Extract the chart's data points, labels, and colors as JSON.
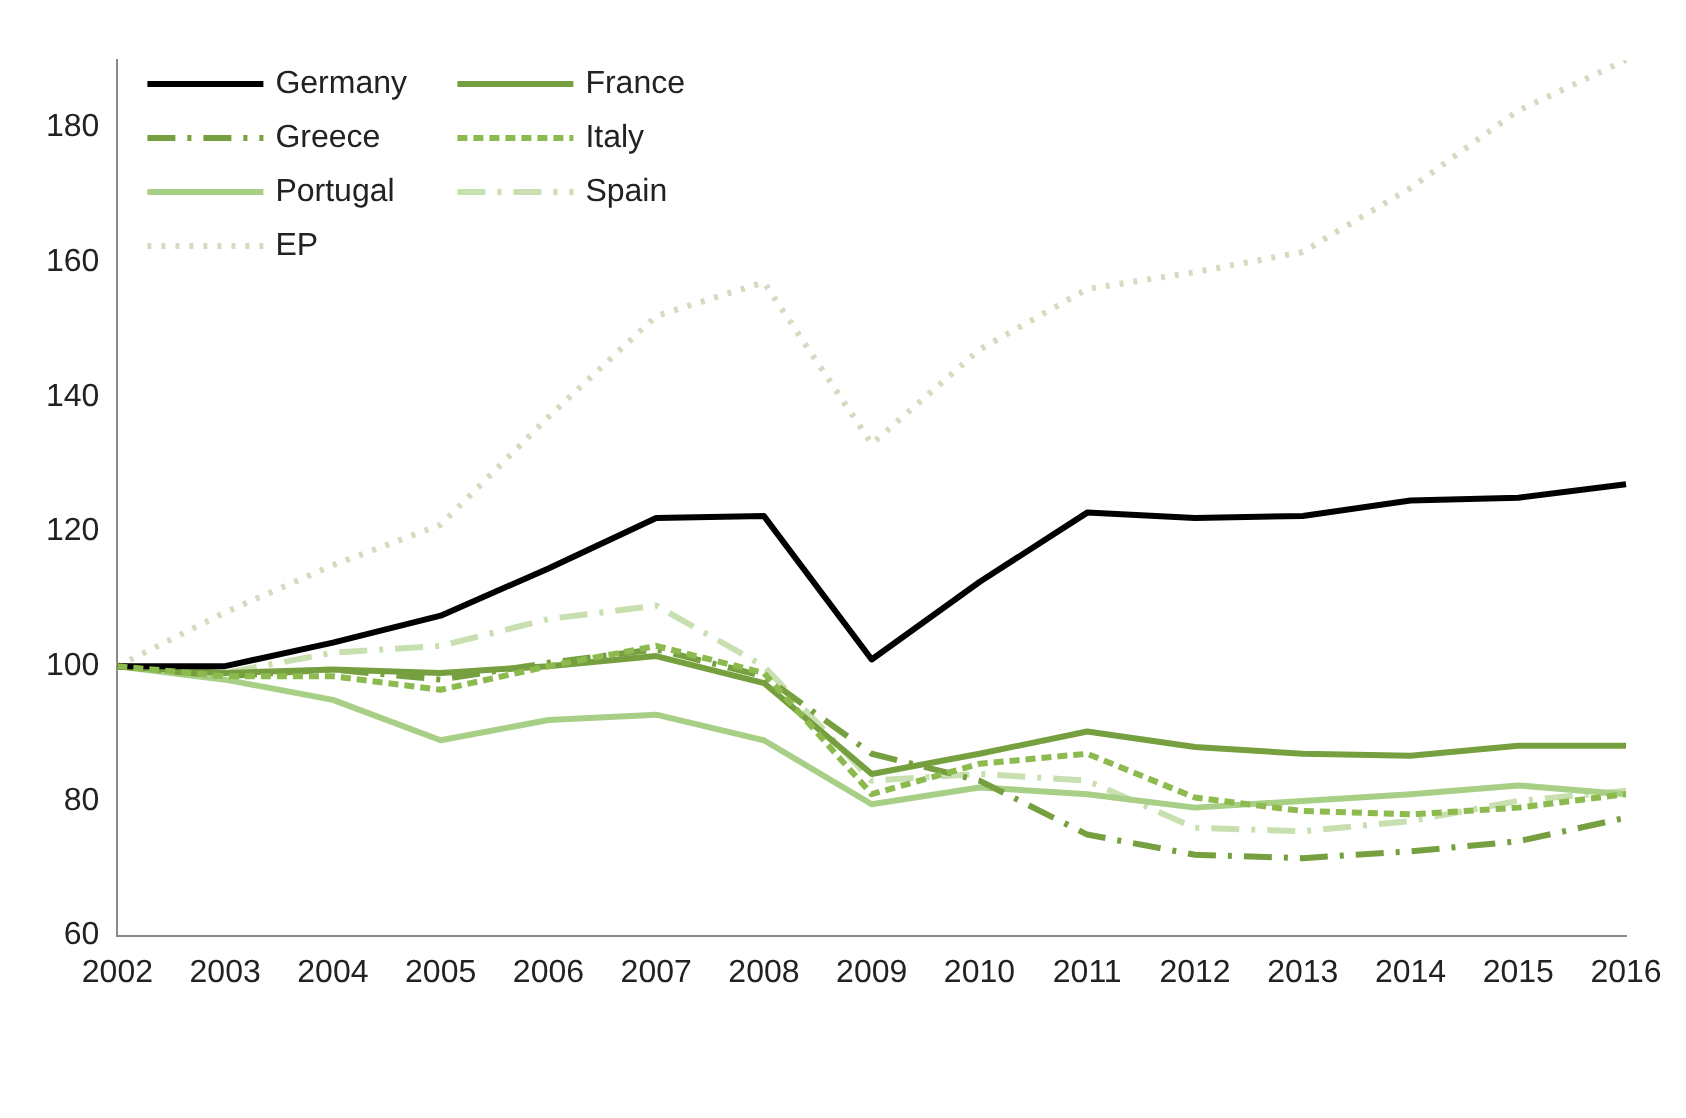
{
  "chart_data": {
    "type": "line",
    "categories": [
      "2002",
      "2003",
      "2004",
      "2005",
      "2006",
      "2007",
      "2008",
      "2009",
      "2010",
      "2011",
      "2012",
      "2013",
      "2014",
      "2015",
      "2016"
    ],
    "ylim": [
      60,
      190
    ],
    "yticks": [
      60,
      80,
      100,
      120,
      140,
      160,
      180
    ],
    "grid": false,
    "legend": "top left",
    "marker": "none",
    "series": [
      {
        "name": "Germany",
        "color": "#000000",
        "line_style": "solid",
        "values": [
          100,
          100,
          103.5,
          107.5,
          114.5,
          122,
          122.3,
          101,
          112.5,
          122.8,
          122,
          122.3,
          124.6,
          125,
          127
        ]
      },
      {
        "name": "France",
        "color": "#76a03f",
        "line_style": "solid",
        "values": [
          100,
          99,
          99.5,
          99,
          100,
          101.5,
          97.5,
          84,
          87,
          90.3,
          88,
          87,
          86.7,
          88.2,
          88.2
        ]
      },
      {
        "name": "Greece",
        "color": "#76a03f",
        "line_style": "dashdot",
        "values": [
          100,
          98.5,
          99.5,
          98,
          100.5,
          102.5,
          98.5,
          87,
          83,
          75,
          72,
          71.5,
          72.5,
          74,
          77.5
        ]
      },
      {
        "name": "Italy",
        "color": "#8cba4e",
        "line_style": "dashed",
        "values": [
          100,
          98.5,
          98.5,
          96.5,
          100,
          103,
          99,
          81,
          85.5,
          87,
          80.5,
          78.5,
          78,
          79,
          81
        ]
      },
      {
        "name": "Portugal",
        "color": "#a8cf86",
        "line_style": "solid",
        "values": [
          100,
          98,
          95,
          89,
          92,
          92.8,
          89,
          79.5,
          82,
          81,
          79,
          80,
          81,
          82.3,
          81
        ]
      },
      {
        "name": "Spain",
        "color": "#c8e0b0",
        "line_style": "dashdot",
        "values": [
          100,
          99,
          102,
          103,
          107,
          109,
          100,
          83,
          84,
          83,
          76,
          75.5,
          77,
          80,
          81.5
        ]
      },
      {
        "name": "EP",
        "color": "#d3dbc0",
        "line_style": "dotted",
        "values": [
          100,
          108,
          115,
          121,
          137,
          152,
          157,
          133,
          147,
          156,
          158.5,
          161.5,
          171,
          182.5,
          190
        ]
      }
    ]
  }
}
